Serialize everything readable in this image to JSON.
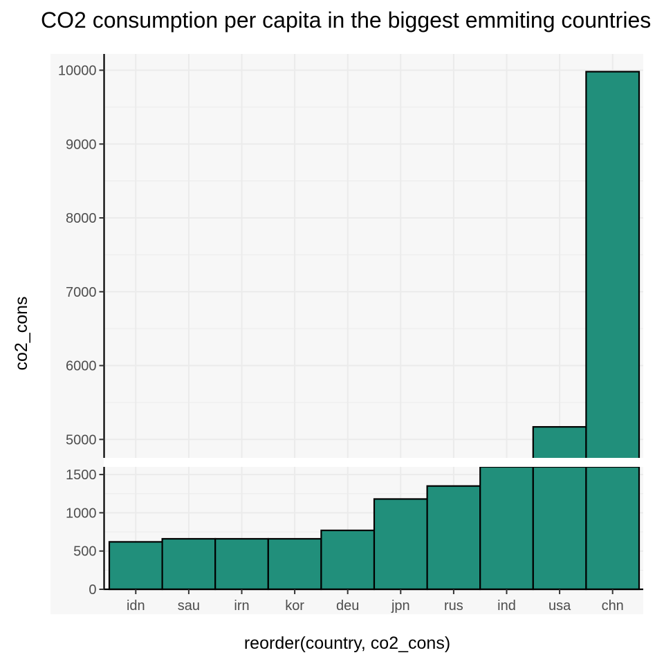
{
  "chart_data": {
    "type": "bar",
    "title": "CO2 consumption per capita in the biggest emmiting countries",
    "xlabel": "reorder(country, co2_cons)",
    "ylabel": "co2_cons",
    "categories": [
      "idn",
      "sau",
      "irn",
      "kor",
      "deu",
      "jpn",
      "rus",
      "ind",
      "usa",
      "chn"
    ],
    "values": [
      620,
      660,
      660,
      660,
      770,
      1180,
      1350,
      1650,
      5170,
      9980
    ],
    "axis_break": true,
    "lower_panel": {
      "ylim": [
        0,
        1600
      ],
      "yticks": [
        0,
        500,
        1000,
        1500
      ]
    },
    "upper_panel": {
      "ylim": [
        4750,
        10220
      ],
      "yticks": [
        5000,
        6000,
        7000,
        8000,
        9000,
        10000
      ]
    },
    "grid": true,
    "legend": "none",
    "colors": {
      "bar_fill": "#218f7b",
      "bar_stroke": "#000000",
      "panel_background": "#f7f7f7",
      "grid": "#ebebeb"
    }
  }
}
